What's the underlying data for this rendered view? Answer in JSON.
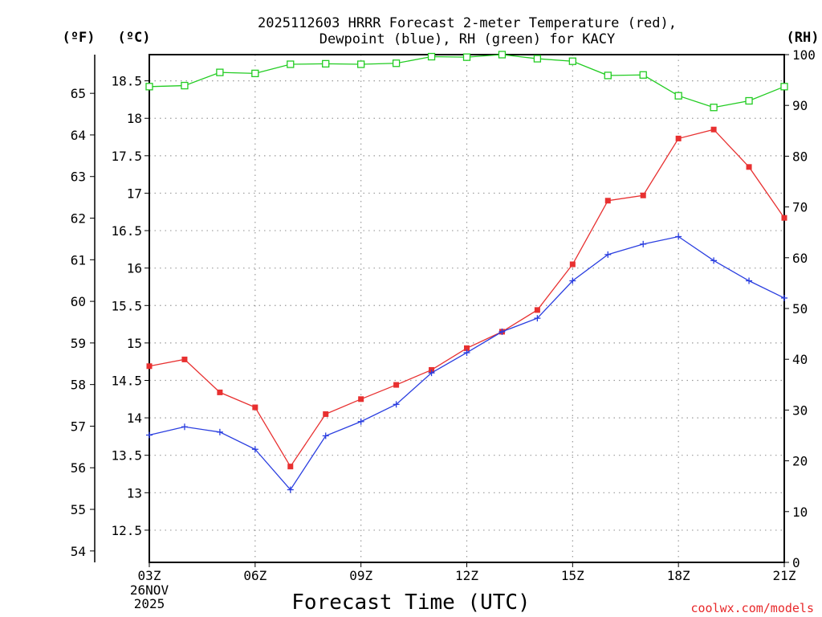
{
  "chart_data": {
    "type": "line",
    "title_line1": "2025112603 HRRR Forecast 2-meter Temperature (red),",
    "title_line2": "Dewpoint (blue), RH (green) for KACY",
    "xlabel": "Forecast Time (UTC)",
    "credit": "coolwx.com/models",
    "left_unit_f": "(ºF)",
    "left_unit_c": "(ºC)",
    "right_unit": "(RH)",
    "x": [
      3,
      4,
      5,
      6,
      7,
      8,
      9,
      10,
      11,
      12,
      13,
      14,
      15,
      16,
      17,
      18,
      19,
      20,
      21
    ],
    "x_ticks": [
      {
        "x": 3,
        "label": "03Z"
      },
      {
        "x": 6,
        "label": "06Z"
      },
      {
        "x": 9,
        "label": "09Z"
      },
      {
        "x": 12,
        "label": "12Z"
      },
      {
        "x": 15,
        "label": "15Z"
      },
      {
        "x": 18,
        "label": "18Z"
      },
      {
        "x": 21,
        "label": "21Z"
      }
    ],
    "date_labels": [
      "26NOV",
      "2025"
    ],
    "xlim": [
      3,
      21
    ],
    "ylim_c": [
      12.07,
      18.85
    ],
    "ylim_rh": [
      0,
      100
    ],
    "celsius_ticks": [
      "12.5",
      "13",
      "13.5",
      "14",
      "14.5",
      "15",
      "15.5",
      "16",
      "16.5",
      "17",
      "17.5",
      "18",
      "18.5"
    ],
    "fahrenheit_ticks": [
      "54",
      "55",
      "56",
      "57",
      "58",
      "59",
      "60",
      "61",
      "62",
      "63",
      "64",
      "65"
    ],
    "rh_ticks": [
      "0",
      "10",
      "20",
      "30",
      "40",
      "50",
      "60",
      "70",
      "80",
      "90",
      "100"
    ],
    "series": [
      {
        "name": "Temperature",
        "color": "#e83030",
        "marker": "filled-square",
        "axis": "celsius",
        "values": [
          14.69,
          14.78,
          14.34,
          14.14,
          13.35,
          14.05,
          14.25,
          14.44,
          14.64,
          14.93,
          15.15,
          15.44,
          16.05,
          16.9,
          16.97,
          17.73,
          17.85,
          17.35,
          16.67
        ]
      },
      {
        "name": "Dewpoint",
        "color": "#2a3ee0",
        "marker": "plus",
        "axis": "celsius",
        "values": [
          13.77,
          13.88,
          13.81,
          13.58,
          13.04,
          13.76,
          13.95,
          14.18,
          14.6,
          14.87,
          15.15,
          15.33,
          15.83,
          16.18,
          16.32,
          16.42,
          16.1,
          15.83,
          15.6
        ]
      },
      {
        "name": "RH",
        "color": "#22cc22",
        "marker": "open-square",
        "axis": "rh",
        "values": [
          93.7,
          93.9,
          96.5,
          96.3,
          98.1,
          98.2,
          98.1,
          98.3,
          99.6,
          99.5,
          100,
          99.2,
          98.7,
          95.9,
          96,
          91.9,
          89.6,
          90.9,
          93.7
        ]
      }
    ]
  }
}
